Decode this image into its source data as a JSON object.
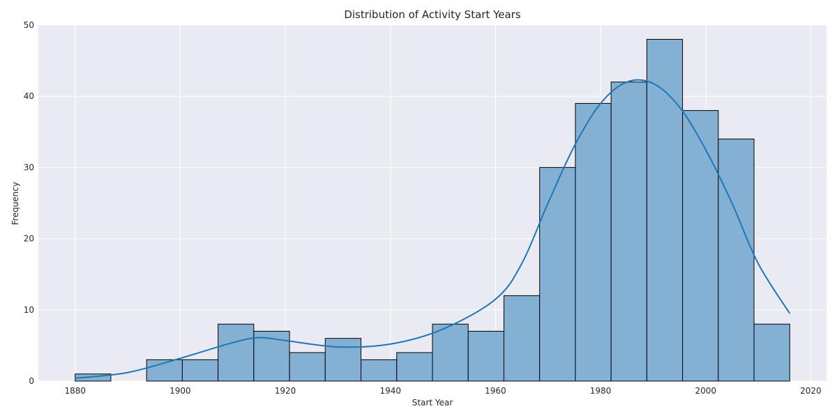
{
  "chart_data": {
    "type": "bar",
    "title": "Distribution of Activity Start Years",
    "xlabel": "Start Year",
    "ylabel": "Frequency",
    "xlim": [
      1873,
      2023
    ],
    "ylim": [
      0,
      50
    ],
    "x_ticks": [
      1880,
      1900,
      1920,
      1940,
      1960,
      1980,
      2000,
      2020
    ],
    "y_ticks": [
      0,
      10,
      20,
      30,
      40,
      50
    ],
    "grid": true,
    "bin_start": 1880,
    "bin_end": 2016,
    "values": [
      1,
      0,
      3,
      3,
      8,
      7,
      4,
      6,
      3,
      4,
      8,
      7,
      12,
      30,
      39,
      42,
      48,
      38,
      34,
      8
    ],
    "kde": {
      "x": [
        1880,
        1890,
        1900,
        1910,
        1915,
        1920,
        1930,
        1940,
        1950,
        1960,
        1965,
        1970,
        1975,
        1980,
        1985,
        1990,
        1995,
        2000,
        2005,
        2010,
        2016
      ],
      "y": [
        0.4,
        1.2,
        3.2,
        5.4,
        6.1,
        5.7,
        4.8,
        5.2,
        7.3,
        11.5,
        16.5,
        25,
        33,
        39,
        42,
        41.8,
        38.5,
        32.5,
        25,
        16.5,
        9.5
      ]
    },
    "colors": {
      "bar_fill": "#84b0d4",
      "bar_edge": "#000000",
      "kde_line": "#1f77b4",
      "plot_bg": "#eaeaf2",
      "grid": "#ffffff"
    }
  }
}
